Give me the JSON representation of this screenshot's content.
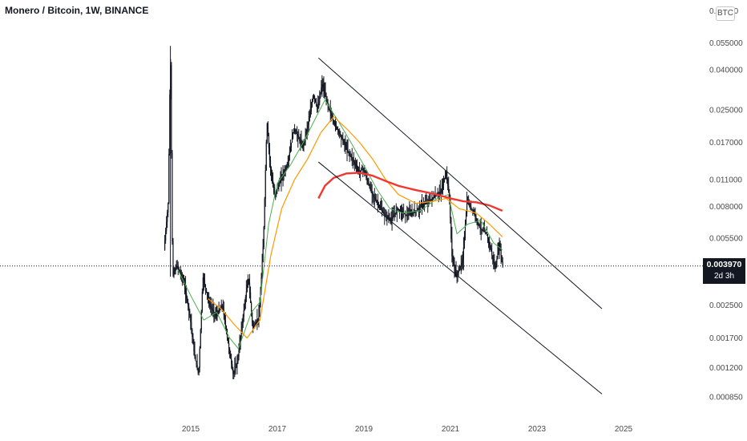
{
  "header": {
    "title": "Monero / Bitcoin, 1W, BINANCE",
    "currency": "BTC"
  },
  "price_tag": {
    "price": "0.003970",
    "countdown": "2d 3h"
  },
  "colors": {
    "candle": "#131722",
    "ma_fast": "#4caf50",
    "ma_mid": "#ff9800",
    "ma_slow": "#f23630",
    "channel": "#131722",
    "price_line": "#131722"
  },
  "chart_data": {
    "type": "candlestick",
    "title": "Monero / Bitcoin, 1W, BINANCE",
    "scale": "log",
    "y_ticks": [
      "0.08000",
      "0.055000",
      "0.040000",
      "0.025000",
      "0.017000",
      "0.011000",
      "0.008000",
      "0.005500",
      "0.002500",
      "0.001700",
      "0.001200",
      "0.000850"
    ],
    "y_tick_values": [
      0.08,
      0.055,
      0.04,
      0.025,
      0.017,
      0.011,
      0.008,
      0.0055,
      0.0025,
      0.0017,
      0.0012,
      0.00085
    ],
    "x_ticks": [
      "2015",
      "2017",
      "2019",
      "2021",
      "2023",
      "2025"
    ],
    "x_tick_years": [
      2015,
      2017,
      2019,
      2021,
      2023,
      2025
    ],
    "current_price": 0.00397,
    "price_path": [
      [
        2014.4,
        0.0048
      ],
      [
        2014.5,
        0.0085
      ],
      [
        2014.55,
        0.052
      ],
      [
        2014.6,
        0.0035
      ],
      [
        2014.7,
        0.004
      ],
      [
        2014.85,
        0.0033
      ],
      [
        2015.0,
        0.0022
      ],
      [
        2015.1,
        0.0014
      ],
      [
        2015.2,
        0.0011
      ],
      [
        2015.3,
        0.0035
      ],
      [
        2015.45,
        0.0025
      ],
      [
        2015.6,
        0.0022
      ],
      [
        2015.75,
        0.0025
      ],
      [
        2015.9,
        0.0015
      ],
      [
        2016.0,
        0.0011
      ],
      [
        2016.1,
        0.0013
      ],
      [
        2016.25,
        0.0024
      ],
      [
        2016.35,
        0.0035
      ],
      [
        2016.45,
        0.0019
      ],
      [
        2016.6,
        0.0022
      ],
      [
        2016.7,
        0.0055
      ],
      [
        2016.78,
        0.022
      ],
      [
        2016.85,
        0.013
      ],
      [
        2016.95,
        0.009
      ],
      [
        2017.1,
        0.011
      ],
      [
        2017.25,
        0.013
      ],
      [
        2017.4,
        0.02
      ],
      [
        2017.5,
        0.018
      ],
      [
        2017.6,
        0.016
      ],
      [
        2017.75,
        0.022
      ],
      [
        2017.85,
        0.03
      ],
      [
        2017.95,
        0.025
      ],
      [
        2018.05,
        0.034
      ],
      [
        2018.15,
        0.028
      ],
      [
        2018.3,
        0.022
      ],
      [
        2018.45,
        0.019
      ],
      [
        2018.6,
        0.016
      ],
      [
        2018.75,
        0.014
      ],
      [
        2018.9,
        0.012
      ],
      [
        2019.0,
        0.0125
      ],
      [
        2019.15,
        0.01
      ],
      [
        2019.3,
        0.0085
      ],
      [
        2019.5,
        0.0072
      ],
      [
        2019.65,
        0.0068
      ],
      [
        2019.8,
        0.0078
      ],
      [
        2020.0,
        0.0072
      ],
      [
        2020.2,
        0.0075
      ],
      [
        2020.4,
        0.0082
      ],
      [
        2020.6,
        0.0088
      ],
      [
        2020.8,
        0.0095
      ],
      [
        2020.92,
        0.012
      ],
      [
        2021.0,
        0.0085
      ],
      [
        2021.05,
        0.0045
      ],
      [
        2021.15,
        0.0035
      ],
      [
        2021.3,
        0.0042
      ],
      [
        2021.4,
        0.0085
      ],
      [
        2021.55,
        0.0075
      ],
      [
        2021.7,
        0.0062
      ],
      [
        2021.85,
        0.0058
      ],
      [
        2021.95,
        0.0048
      ],
      [
        2022.05,
        0.0038
      ],
      [
        2022.15,
        0.0052
      ],
      [
        2022.22,
        0.00397
      ]
    ],
    "moving_averages": [
      {
        "color": "green",
        "points": [
          [
            2014.7,
            0.0038
          ],
          [
            2015.0,
            0.0028
          ],
          [
            2015.3,
            0.0021
          ],
          [
            2015.6,
            0.0023
          ],
          [
            2015.9,
            0.0017
          ],
          [
            2016.1,
            0.0015
          ],
          [
            2016.4,
            0.0023
          ],
          [
            2016.6,
            0.0026
          ],
          [
            2016.8,
            0.0065
          ],
          [
            2017.0,
            0.0105
          ],
          [
            2017.3,
            0.013
          ],
          [
            2017.6,
            0.017
          ],
          [
            2017.9,
            0.023
          ],
          [
            2018.1,
            0.028
          ],
          [
            2018.4,
            0.022
          ],
          [
            2018.7,
            0.017
          ],
          [
            2019.0,
            0.013
          ],
          [
            2019.3,
            0.0098
          ],
          [
            2019.6,
            0.0078
          ],
          [
            2019.9,
            0.0074
          ],
          [
            2020.3,
            0.0076
          ],
          [
            2020.7,
            0.0088
          ],
          [
            2020.95,
            0.0092
          ],
          [
            2021.15,
            0.0058
          ],
          [
            2021.4,
            0.0065
          ],
          [
            2021.7,
            0.0068
          ],
          [
            2022.0,
            0.0052
          ],
          [
            2022.2,
            0.0048
          ]
        ]
      },
      {
        "color": "orange",
        "points": [
          [
            2015.4,
            0.0027
          ],
          [
            2015.7,
            0.0024
          ],
          [
            2016.0,
            0.002
          ],
          [
            2016.3,
            0.0017
          ],
          [
            2016.6,
            0.0021
          ],
          [
            2016.85,
            0.0045
          ],
          [
            2017.1,
            0.0078
          ],
          [
            2017.4,
            0.011
          ],
          [
            2017.7,
            0.014
          ],
          [
            2018.0,
            0.019
          ],
          [
            2018.3,
            0.023
          ],
          [
            2018.6,
            0.02
          ],
          [
            2018.9,
            0.017
          ],
          [
            2019.2,
            0.014
          ],
          [
            2019.5,
            0.011
          ],
          [
            2019.8,
            0.0092
          ],
          [
            2020.2,
            0.0083
          ],
          [
            2020.6,
            0.0085
          ],
          [
            2020.9,
            0.0088
          ],
          [
            2021.2,
            0.0078
          ],
          [
            2021.6,
            0.0074
          ],
          [
            2021.9,
            0.0065
          ],
          [
            2022.2,
            0.0056
          ]
        ]
      },
      {
        "color": "red",
        "points": [
          [
            2017.95,
            0.0088
          ],
          [
            2018.1,
            0.0102
          ],
          [
            2018.3,
            0.0112
          ],
          [
            2018.6,
            0.0118
          ],
          [
            2018.9,
            0.0119
          ],
          [
            2019.2,
            0.0115
          ],
          [
            2019.5,
            0.0108
          ],
          [
            2019.8,
            0.0102
          ],
          [
            2020.2,
            0.0097
          ],
          [
            2020.6,
            0.0093
          ],
          [
            2021.0,
            0.0088
          ],
          [
            2021.3,
            0.0085
          ],
          [
            2021.6,
            0.0084
          ],
          [
            2021.9,
            0.0081
          ],
          [
            2022.2,
            0.0076
          ]
        ]
      }
    ],
    "channel_lines": [
      {
        "name": "upper",
        "from": [
          2017.95,
          0.046
        ],
        "to": [
          2024.5,
          0.0024
        ]
      },
      {
        "name": "lower",
        "from": [
          2017.95,
          0.0135
        ],
        "to": [
          2024.5,
          0.00088
        ]
      }
    ]
  }
}
